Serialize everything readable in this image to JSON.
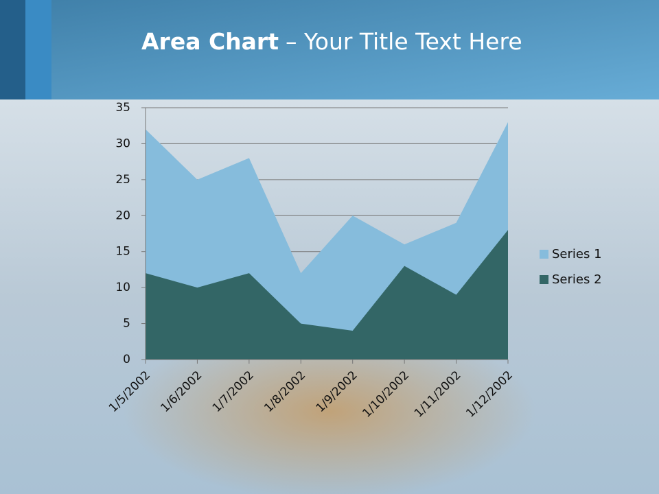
{
  "header": {
    "title_bold": "Area Chart",
    "title_rest": "– Your Title Text Here"
  },
  "chart_data": {
    "type": "area",
    "categories": [
      "1/5/2002",
      "1/6/2002",
      "1/7/2002",
      "1/8/2002",
      "1/9/2002",
      "1/10/2002",
      "1/11/2002",
      "1/12/2002"
    ],
    "series": [
      {
        "name": "Series 1",
        "color": "#86bcdc",
        "values": [
          32,
          25,
          28,
          12,
          20,
          16,
          19,
          33
        ]
      },
      {
        "name": "Series 2",
        "color": "#336666",
        "values": [
          12,
          10,
          12,
          5,
          4,
          13,
          9,
          18
        ]
      }
    ],
    "ylim": [
      0,
      35
    ],
    "yticks": [
      0,
      5,
      10,
      15,
      20,
      25,
      30,
      35
    ],
    "grid": true,
    "legend": "right"
  }
}
